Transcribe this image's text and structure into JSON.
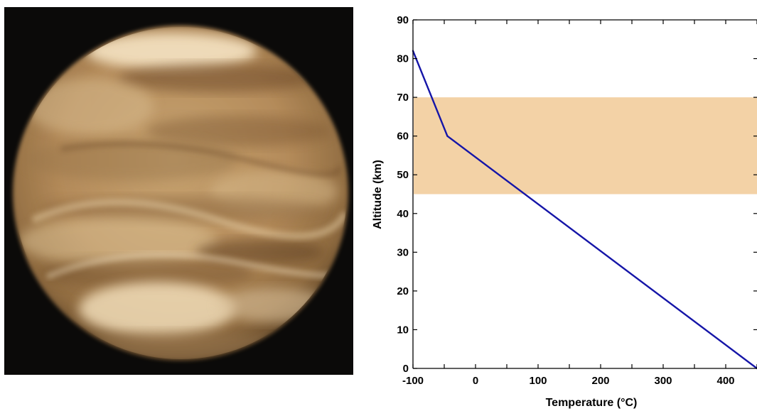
{
  "chart_data": {
    "type": "line",
    "title": "",
    "xlabel": "Temperature (°C)",
    "ylabel": "Altitude (km)",
    "xlim": [
      -100,
      450
    ],
    "ylim": [
      0,
      90
    ],
    "x_ticks": [
      -100,
      0,
      100,
      200,
      300,
      400
    ],
    "y_ticks": [
      0,
      10,
      20,
      30,
      40,
      50,
      60,
      70,
      80,
      90
    ],
    "grid": false,
    "legend": "none",
    "series": [
      {
        "color": "#1515a8",
        "x": [
          -100,
          -45,
          450
        ],
        "y": [
          82,
          60,
          0
        ]
      }
    ],
    "bands": [
      {
        "axis": "y",
        "from": 45,
        "to": 70,
        "color": "#f3d2a6"
      }
    ]
  },
  "image": {
    "icon": "venus-planet-image",
    "colors": {
      "background": "#0b0a09",
      "planet_light": "#e9d3ad",
      "planet_dark": "#7a5630"
    }
  }
}
